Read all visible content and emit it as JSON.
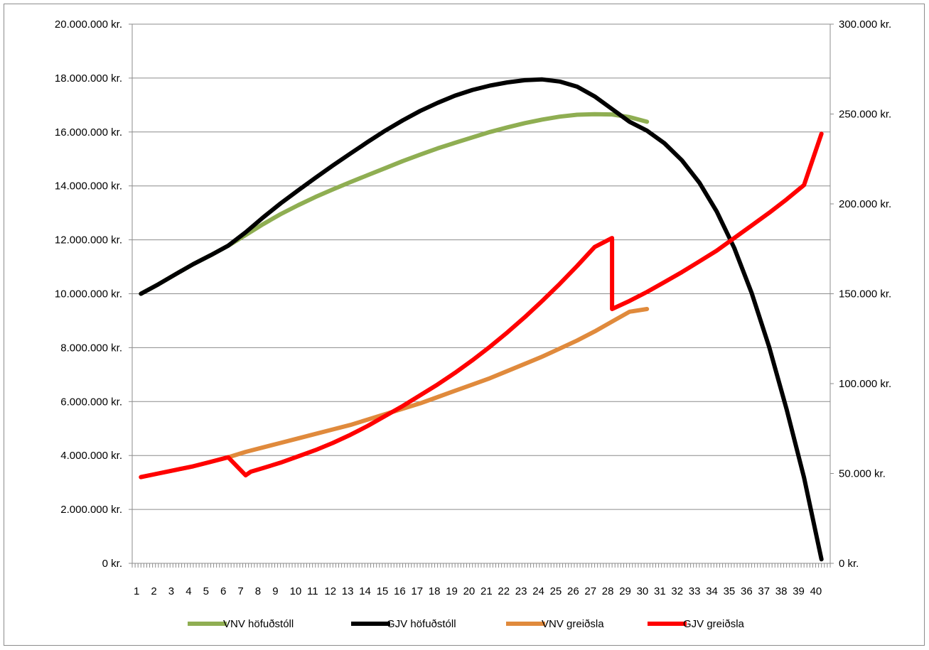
{
  "chart_data": {
    "type": "line",
    "title": "",
    "xlabel": "",
    "ylabel": "",
    "categories": [
      1,
      2,
      3,
      4,
      5,
      6,
      7,
      8,
      9,
      10,
      11,
      12,
      13,
      14,
      15,
      16,
      17,
      18,
      19,
      20,
      21,
      22,
      23,
      24,
      25,
      26,
      27,
      28,
      29,
      30,
      31,
      32,
      33,
      34,
      35,
      36,
      37,
      38,
      39,
      40
    ],
    "ylim_left": [
      0,
      20000000
    ],
    "ylim_right": [
      0,
      300000
    ],
    "y_ticks_left": [
      "0 kr.",
      "2.000.000 kr.",
      "4.000.000 kr.",
      "6.000.000 kr.",
      "8.000.000 kr.",
      "10.000.000 kr.",
      "12.000.000 kr.",
      "14.000.000 kr.",
      "16.000.000 kr.",
      "18.000.000 kr.",
      "20.000.000 kr."
    ],
    "y_ticks_right": [
      "0 kr.",
      "50.000 kr.",
      "100.000 kr.",
      "150.000 kr.",
      "200.000 kr.",
      "250.000 kr.",
      "300.000 kr."
    ],
    "grid": true,
    "legend_position": "bottom",
    "series": [
      {
        "name": "VNV höfuðstóll",
        "axis": "left",
        "color": "#8fae52",
        "points": [
          [
            1,
            10000000
          ],
          [
            2,
            10350000
          ],
          [
            3,
            10730000
          ],
          [
            4,
            11100000
          ],
          [
            5,
            11430000
          ],
          [
            6,
            11780000
          ],
          [
            7,
            12180000
          ],
          [
            8,
            12580000
          ],
          [
            9,
            12950000
          ],
          [
            10,
            13280000
          ],
          [
            11,
            13590000
          ],
          [
            12,
            13870000
          ],
          [
            13,
            14140000
          ],
          [
            14,
            14400000
          ],
          [
            15,
            14660000
          ],
          [
            16,
            14920000
          ],
          [
            17,
            15160000
          ],
          [
            18,
            15390000
          ],
          [
            19,
            15600000
          ],
          [
            20,
            15800000
          ],
          [
            21,
            16000000
          ],
          [
            22,
            16170000
          ],
          [
            23,
            16330000
          ],
          [
            24,
            16460000
          ],
          [
            25,
            16570000
          ],
          [
            26,
            16640000
          ],
          [
            27,
            16660000
          ],
          [
            28,
            16650000
          ],
          [
            29,
            16550000
          ],
          [
            30,
            16380000
          ]
        ]
      },
      {
        "name": "GJV höfuðstóll",
        "axis": "left",
        "color": "#000000",
        "points": [
          [
            1,
            10000000
          ],
          [
            2,
            10350000
          ],
          [
            3,
            10730000
          ],
          [
            4,
            11100000
          ],
          [
            5,
            11430000
          ],
          [
            6,
            11780000
          ],
          [
            7,
            12280000
          ],
          [
            8,
            12830000
          ],
          [
            9,
            13350000
          ],
          [
            10,
            13830000
          ],
          [
            11,
            14300000
          ],
          [
            12,
            14760000
          ],
          [
            13,
            15200000
          ],
          [
            14,
            15630000
          ],
          [
            15,
            16050000
          ],
          [
            16,
            16430000
          ],
          [
            17,
            16780000
          ],
          [
            18,
            17080000
          ],
          [
            19,
            17350000
          ],
          [
            20,
            17560000
          ],
          [
            21,
            17720000
          ],
          [
            22,
            17840000
          ],
          [
            23,
            17920000
          ],
          [
            24,
            17950000
          ],
          [
            25,
            17870000
          ],
          [
            26,
            17680000
          ],
          [
            27,
            17320000
          ],
          [
            28,
            16850000
          ],
          [
            29,
            16380000
          ],
          [
            30,
            16050000
          ],
          [
            31,
            15580000
          ],
          [
            32,
            14950000
          ],
          [
            33,
            14120000
          ],
          [
            34,
            13050000
          ],
          [
            35,
            11700000
          ],
          [
            36,
            10030000
          ],
          [
            37,
            8030000
          ],
          [
            38,
            5720000
          ],
          [
            39,
            3180000
          ],
          [
            40,
            150000
          ]
        ]
      },
      {
        "name": "VNV greiðsla",
        "axis": "right",
        "color": "#e08a3c",
        "points": [
          [
            1,
            48000
          ],
          [
            2,
            50000
          ],
          [
            3,
            52000
          ],
          [
            4,
            54000
          ],
          [
            5,
            56500
          ],
          [
            6,
            59000
          ],
          [
            7,
            62000
          ],
          [
            8,
            64500
          ],
          [
            9,
            67000
          ],
          [
            10,
            69500
          ],
          [
            11,
            72000
          ],
          [
            12,
            74500
          ],
          [
            13,
            77000
          ],
          [
            14,
            80000
          ],
          [
            15,
            83000
          ],
          [
            16,
            86000
          ],
          [
            17,
            89000
          ],
          [
            18,
            92500
          ],
          [
            19,
            96000
          ],
          [
            20,
            99500
          ],
          [
            21,
            103000
          ],
          [
            22,
            107000
          ],
          [
            23,
            111000
          ],
          [
            24,
            115000
          ],
          [
            25,
            119500
          ],
          [
            26,
            124000
          ],
          [
            27,
            129000
          ],
          [
            28,
            134500
          ],
          [
            29,
            140000
          ],
          [
            30,
            141500
          ]
        ]
      },
      {
        "name": "GJV greiðsla",
        "axis": "right",
        "color": "#ff0000",
        "points": [
          [
            1,
            48000
          ],
          [
            2,
            50000
          ],
          [
            3,
            52000
          ],
          [
            4,
            54000
          ],
          [
            5,
            56500
          ],
          [
            6,
            59000
          ],
          [
            7,
            49000
          ],
          [
            7.3,
            51000
          ],
          [
            8,
            53000
          ],
          [
            9,
            56000
          ],
          [
            10,
            59500
          ],
          [
            11,
            63000
          ],
          [
            12,
            67000
          ],
          [
            13,
            71500
          ],
          [
            14,
            76500
          ],
          [
            15,
            82000
          ],
          [
            16,
            87500
          ],
          [
            17,
            93500
          ],
          [
            18,
            99500
          ],
          [
            19,
            106000
          ],
          [
            20,
            113000
          ],
          [
            21,
            120500
          ],
          [
            22,
            128500
          ],
          [
            23,
            137000
          ],
          [
            24,
            146000
          ],
          [
            25,
            155500
          ],
          [
            26,
            165500
          ],
          [
            27,
            176000
          ],
          [
            28,
            181000
          ],
          [
            28,
            141500
          ],
          [
            29,
            146000
          ],
          [
            30,
            151000
          ],
          [
            31,
            156500
          ],
          [
            32,
            162000
          ],
          [
            33,
            168000
          ],
          [
            34,
            174000
          ],
          [
            35,
            181000
          ],
          [
            36,
            188000
          ],
          [
            37,
            195000
          ],
          [
            38,
            202500
          ],
          [
            39,
            210500
          ],
          [
            40,
            239000
          ]
        ]
      }
    ]
  }
}
